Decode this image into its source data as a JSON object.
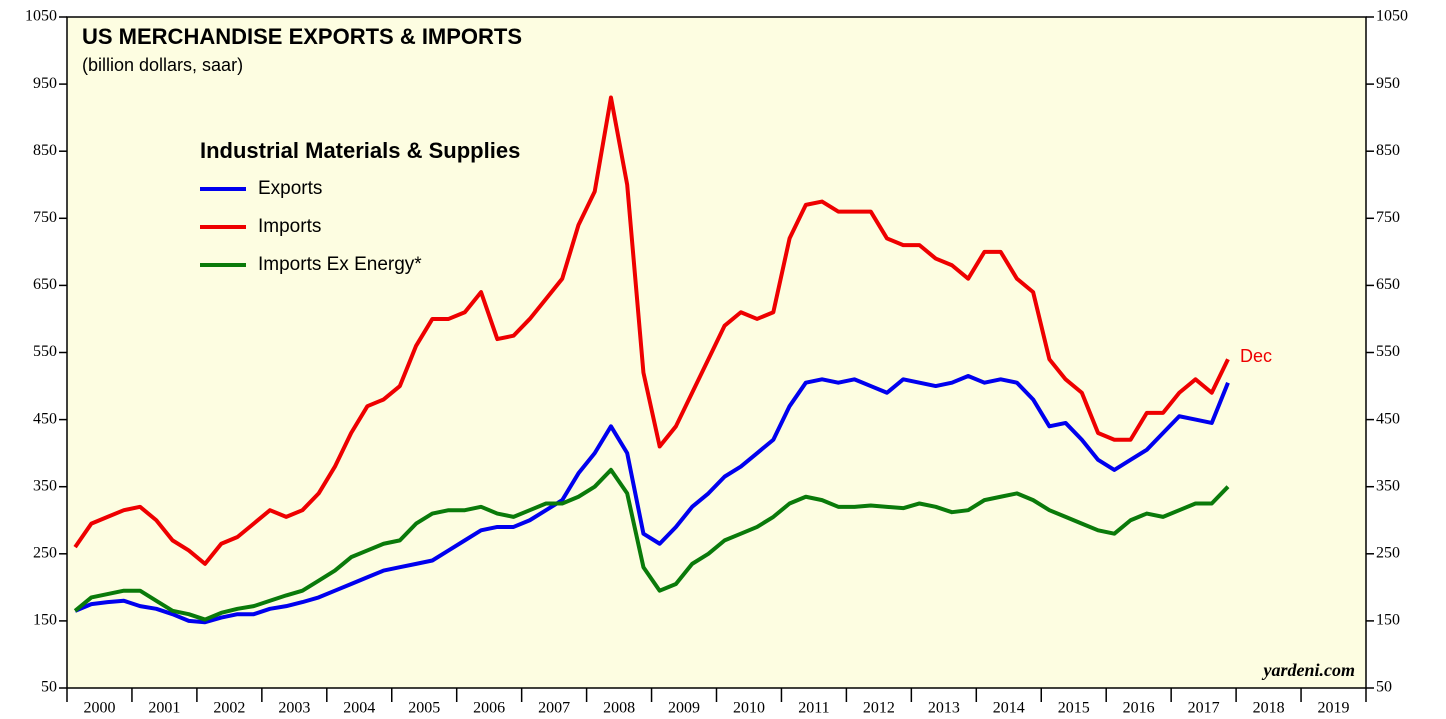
{
  "chart_data": {
    "type": "line",
    "title": "US MERCHANDISE EXPORTS & IMPORTS",
    "subtitle": "(billion dollars, saar)",
    "legend_title": "Industrial Materials & Supplies",
    "legend": "upper-left",
    "annotation": "Dec",
    "source": "yardeni.com",
    "background": "#fdfde1",
    "xlim": [
      2000,
      2020
    ],
    "xticks": [
      2000,
      2001,
      2002,
      2003,
      2004,
      2005,
      2006,
      2007,
      2008,
      2009,
      2010,
      2011,
      2012,
      2013,
      2014,
      2015,
      2016,
      2017,
      2018,
      2019,
      2020
    ],
    "xlabels": [
      "2000",
      "2001",
      "2002",
      "2003",
      "2004",
      "2005",
      "2006",
      "2007",
      "2008",
      "2009",
      "2010",
      "2011",
      "2012",
      "2013",
      "2014",
      "2015",
      "2016",
      "2017",
      "2018",
      "2019"
    ],
    "ylim": [
      50,
      1050
    ],
    "yticks": [
      50,
      150,
      250,
      350,
      450,
      550,
      650,
      750,
      850,
      950,
      1050
    ],
    "x": [
      2000.125,
      2000.375,
      2000.625,
      2000.875,
      2001.125,
      2001.375,
      2001.625,
      2001.875,
      2002.125,
      2002.375,
      2002.625,
      2002.875,
      2003.125,
      2003.375,
      2003.625,
      2003.875,
      2004.125,
      2004.375,
      2004.625,
      2004.875,
      2005.125,
      2005.375,
      2005.625,
      2005.875,
      2006.125,
      2006.375,
      2006.625,
      2006.875,
      2007.125,
      2007.375,
      2007.625,
      2007.875,
      2008.125,
      2008.375,
      2008.625,
      2008.875,
      2009.125,
      2009.375,
      2009.625,
      2009.875,
      2010.125,
      2010.375,
      2010.625,
      2010.875,
      2011.125,
      2011.375,
      2011.625,
      2011.875,
      2012.125,
      2012.375,
      2012.625,
      2012.875,
      2013.125,
      2013.375,
      2013.625,
      2013.875,
      2014.125,
      2014.375,
      2014.625,
      2014.875,
      2015.125,
      2015.375,
      2015.625,
      2015.875,
      2016.125,
      2016.375,
      2016.625,
      2016.875,
      2017.125,
      2017.375,
      2017.625,
      2017.875
    ],
    "series": [
      {
        "name": "Exports",
        "color": "#0000ee",
        "values": [
          165,
          175,
          178,
          180,
          172,
          168,
          160,
          150,
          148,
          155,
          160,
          160,
          168,
          172,
          178,
          185,
          195,
          205,
          215,
          225,
          230,
          235,
          240,
          255,
          270,
          285,
          290,
          290,
          300,
          315,
          330,
          370,
          400,
          440,
          400,
          280,
          265,
          290,
          320,
          340,
          365,
          380,
          400,
          420,
          470,
          505,
          510,
          505,
          510,
          500,
          490,
          510,
          505,
          500,
          505,
          515,
          505,
          510,
          505,
          480,
          440,
          445,
          420,
          390,
          375,
          390,
          405,
          430,
          455,
          450,
          445,
          505
        ]
      },
      {
        "name": "Imports",
        "color": "#ee0000",
        "values": [
          260,
          295,
          305,
          315,
          320,
          300,
          270,
          255,
          235,
          265,
          275,
          295,
          315,
          305,
          315,
          340,
          380,
          430,
          470,
          480,
          500,
          560,
          600,
          600,
          610,
          640,
          570,
          575,
          600,
          630,
          660,
          740,
          790,
          930,
          800,
          520,
          410,
          440,
          490,
          540,
          590,
          610,
          600,
          610,
          720,
          770,
          775,
          760,
          760,
          760,
          720,
          710,
          710,
          690,
          680,
          660,
          700,
          700,
          660,
          640,
          540,
          510,
          490,
          430,
          420,
          420,
          460,
          460,
          490,
          510,
          490,
          540
        ]
      },
      {
        "name": "Imports Ex Energy*",
        "color": "#0a7a0a",
        "values": [
          165,
          185,
          190,
          195,
          195,
          180,
          165,
          160,
          152,
          162,
          168,
          172,
          180,
          188,
          195,
          210,
          225,
          245,
          255,
          265,
          270,
          295,
          310,
          315,
          315,
          320,
          310,
          305,
          315,
          325,
          325,
          335,
          350,
          375,
          340,
          230,
          195,
          205,
          235,
          250,
          270,
          280,
          290,
          305,
          325,
          335,
          330,
          320,
          320,
          322,
          320,
          318,
          325,
          320,
          312,
          315,
          330,
          335,
          340,
          330,
          315,
          305,
          295,
          285,
          280,
          300,
          310,
          305,
          315,
          325,
          325,
          350
        ]
      }
    ]
  }
}
